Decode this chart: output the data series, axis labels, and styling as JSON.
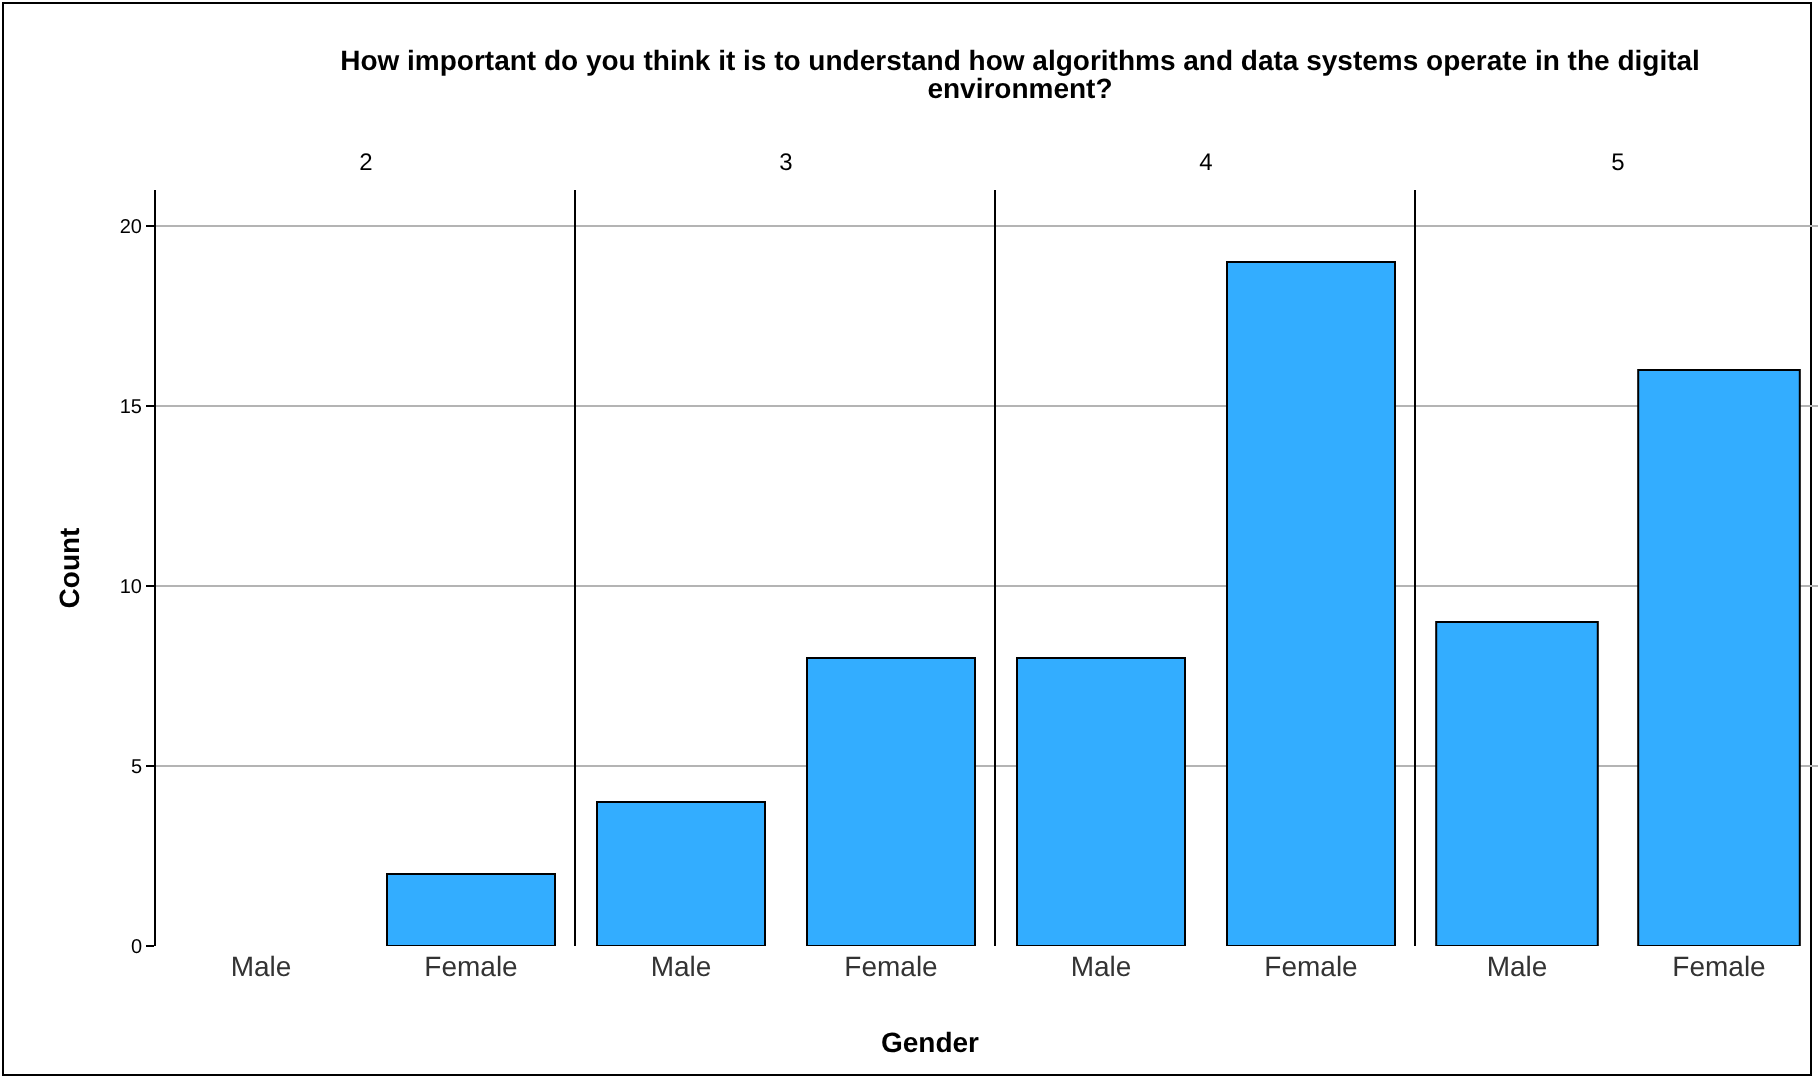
{
  "chart_data": [
    {
      "type": "bar",
      "title": "How important do you think it is to understand how algorithms and data systems operate in the digital environment?",
      "subtitle": "2",
      "ylabel": "Count",
      "categories": [
        "Male",
        "Female"
      ],
      "values": [
        0,
        2
      ],
      "color": "#33adff",
      "ylim": [
        0,
        21
      ],
      "yticks": [
        0,
        5,
        10,
        15,
        20
      ],
      "grid": "y",
      "legend": false
    },
    {
      "type": "bar",
      "subtitle": "3",
      "xlabel": "Gender",
      "categories": [
        "Male",
        "Female"
      ],
      "values": [
        4,
        8
      ],
      "color": "#33adff",
      "ylim": [
        0,
        21
      ],
      "yticks": [
        0,
        5,
        10,
        15,
        20
      ],
      "grid": "y",
      "legend": false,
      "tick_labels": "x"
    },
    {
      "type": "bar",
      "subtitle": "4",
      "categories": [
        "Male",
        "Female"
      ],
      "values": [
        8,
        19
      ],
      "color": "#33adff",
      "ylim": [
        0,
        21
      ],
      "yticks": [
        0,
        5,
        10,
        15,
        20
      ],
      "grid": "y",
      "legend": false,
      "tick_labels": "x"
    },
    {
      "type": "bar",
      "subtitle": "5",
      "categories": [
        "Male",
        "Female"
      ],
      "values": [
        9,
        16
      ],
      "color": "#33adff",
      "ylim": [
        0,
        21
      ],
      "yticks": [
        0,
        5,
        10,
        15,
        20
      ],
      "grid": "y",
      "legend": false,
      "tick_labels": "x"
    }
  ]
}
